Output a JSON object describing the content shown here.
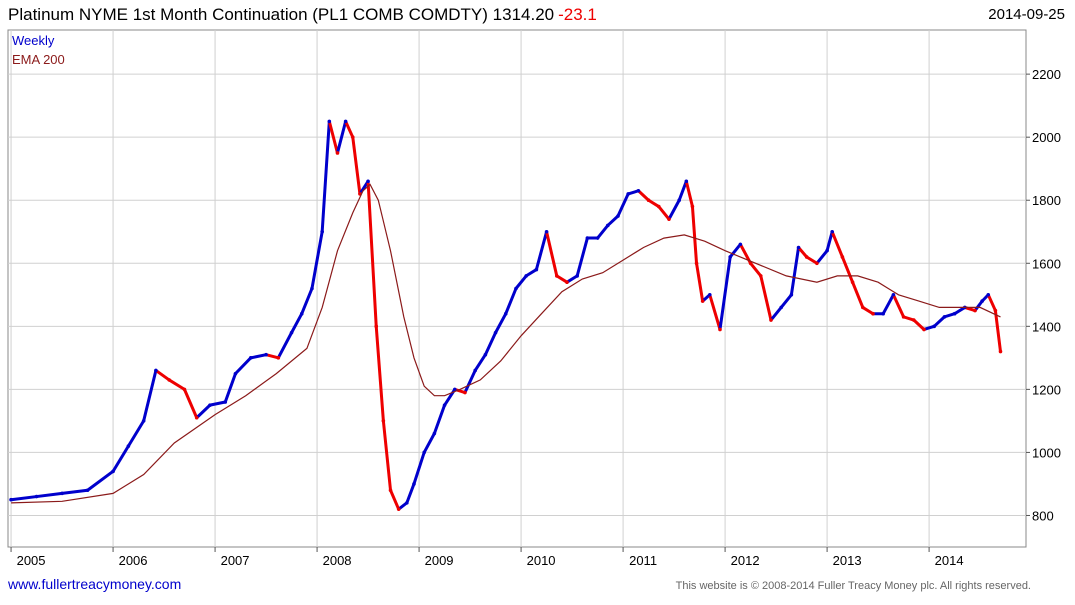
{
  "header": {
    "title": "Platinum NYME 1st Month Continuation (PL1 COMB COMDTY) 1314.20",
    "change": "-23.1",
    "date": "2014-09-25"
  },
  "footer": {
    "website": "www.fullertreacymoney.com",
    "copyright": "This website is © 2008-2014 Fuller Treacy Money plc. All rights reserved."
  },
  "colors": {
    "up": "#0000cc",
    "down": "#ee0000",
    "ema": "#8b1a1a",
    "grid": "#d0d0d0",
    "change": "#ee0000",
    "link": "#0000cc"
  },
  "chart_data": {
    "type": "line",
    "legend": [
      "Weekly",
      "EMA 200"
    ],
    "legend_position": "top-left",
    "grid": true,
    "x_ticks": [
      "2005",
      "2006",
      "2007",
      "2008",
      "2009",
      "2010",
      "2011",
      "2012",
      "2013",
      "2014"
    ],
    "y_ticks": [
      800,
      1000,
      1200,
      1400,
      1600,
      1800,
      2000,
      2200
    ],
    "ylim": [
      700,
      2340
    ],
    "xlim": [
      2004.97,
      2014.95
    ],
    "series": [
      {
        "name": "Weekly",
        "x": [
          2005.0,
          2005.25,
          2005.5,
          2005.75,
          2006.0,
          2006.15,
          2006.3,
          2006.42,
          2006.55,
          2006.7,
          2006.82,
          2006.95,
          2007.1,
          2007.2,
          2007.35,
          2007.5,
          2007.62,
          2007.75,
          2007.85,
          2007.95,
          2008.05,
          2008.12,
          2008.2,
          2008.28,
          2008.35,
          2008.42,
          2008.5,
          2008.58,
          2008.65,
          2008.72,
          2008.8,
          2008.88,
          2008.95,
          2009.05,
          2009.15,
          2009.25,
          2009.35,
          2009.45,
          2009.55,
          2009.65,
          2009.75,
          2009.85,
          2009.95,
          2010.05,
          2010.15,
          2010.25,
          2010.35,
          2010.45,
          2010.55,
          2010.65,
          2010.75,
          2010.85,
          2010.95,
          2011.05,
          2011.15,
          2011.25,
          2011.35,
          2011.45,
          2011.55,
          2011.62,
          2011.68,
          2011.72,
          2011.78,
          2011.85,
          2011.95,
          2012.05,
          2012.15,
          2012.25,
          2012.35,
          2012.45,
          2012.55,
          2012.65,
          2012.72,
          2012.8,
          2012.9,
          2013.0,
          2013.05,
          2013.15,
          2013.25,
          2013.35,
          2013.45,
          2013.55,
          2013.65,
          2013.75,
          2013.85,
          2013.95,
          2014.05,
          2014.15,
          2014.25,
          2014.35,
          2014.45,
          2014.52,
          2014.58,
          2014.65,
          2014.7
        ],
        "values": [
          850,
          860,
          870,
          880,
          940,
          1020,
          1100,
          1260,
          1230,
          1200,
          1110,
          1150,
          1160,
          1250,
          1300,
          1310,
          1300,
          1380,
          1440,
          1520,
          1700,
          2050,
          1950,
          2050,
          2000,
          1820,
          1860,
          1400,
          1100,
          880,
          820,
          840,
          900,
          1000,
          1060,
          1150,
          1200,
          1190,
          1260,
          1310,
          1380,
          1440,
          1520,
          1560,
          1580,
          1700,
          1560,
          1540,
          1560,
          1680,
          1680,
          1720,
          1750,
          1820,
          1830,
          1800,
          1780,
          1740,
          1800,
          1860,
          1780,
          1600,
          1480,
          1500,
          1390,
          1620,
          1660,
          1600,
          1560,
          1420,
          1460,
          1500,
          1650,
          1620,
          1600,
          1640,
          1700,
          1620,
          1540,
          1460,
          1440,
          1440,
          1500,
          1430,
          1420,
          1390,
          1400,
          1430,
          1440,
          1460,
          1450,
          1480,
          1500,
          1450,
          1320
        ]
      },
      {
        "name": "EMA 200",
        "x": [
          2005.0,
          2005.5,
          2006.0,
          2006.3,
          2006.6,
          2007.0,
          2007.3,
          2007.6,
          2007.9,
          2008.05,
          2008.2,
          2008.35,
          2008.45,
          2008.52,
          2008.6,
          2008.72,
          2008.85,
          2008.95,
          2009.05,
          2009.15,
          2009.25,
          2009.4,
          2009.6,
          2009.8,
          2010.0,
          2010.2,
          2010.4,
          2010.6,
          2010.8,
          2011.0,
          2011.2,
          2011.4,
          2011.6,
          2011.8,
          2012.0,
          2012.3,
          2012.6,
          2012.9,
          2013.1,
          2013.3,
          2013.5,
          2013.7,
          2013.9,
          2014.1,
          2014.3,
          2014.5,
          2014.7
        ],
        "values": [
          840,
          845,
          870,
          930,
          1030,
          1120,
          1180,
          1250,
          1330,
          1460,
          1640,
          1760,
          1830,
          1850,
          1800,
          1640,
          1430,
          1300,
          1210,
          1180,
          1180,
          1200,
          1230,
          1290,
          1370,
          1440,
          1510,
          1550,
          1570,
          1610,
          1650,
          1680,
          1690,
          1670,
          1640,
          1600,
          1560,
          1540,
          1560,
          1560,
          1540,
          1500,
          1480,
          1460,
          1460,
          1460,
          1430
        ]
      }
    ]
  }
}
